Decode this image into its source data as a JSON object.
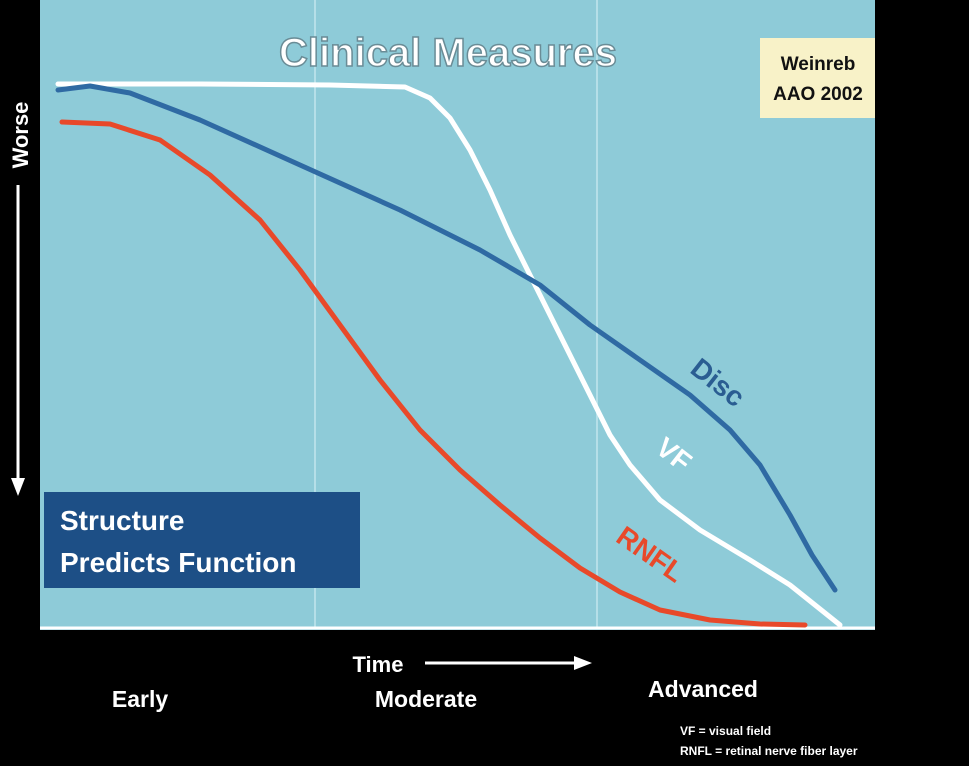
{
  "title": "Clinical Measures",
  "citation": [
    "Weinreb",
    "AAO 2002"
  ],
  "y_axis_label": "Worse",
  "callout": [
    "Structure",
    "Predicts Function"
  ],
  "curve_labels": [
    "Disc",
    "VF",
    "RNFL"
  ],
  "x_axis_label": "Time",
  "stages": [
    "Early",
    "Moderate",
    "Advanced"
  ],
  "footnotes": [
    "VF = visual field",
    "RNFL = retinal nerve fiber layer"
  ]
}
